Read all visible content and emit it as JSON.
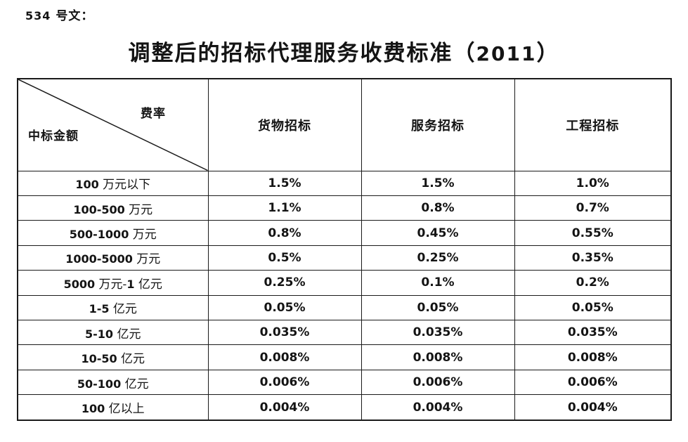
{
  "page": {
    "doc_label": "534 号文：",
    "title": "调整后的招标代理服务收费标准（2011）"
  },
  "colors": {
    "background": "#ffffff",
    "text": "#141414",
    "border": "#1a1a1a"
  },
  "table": {
    "corner": {
      "top_right": "费率",
      "bottom_left": "中标金额"
    },
    "columns": [
      "货物招标",
      "服务招标",
      "工程招标"
    ],
    "rows": [
      {
        "amount": "100 万元以下",
        "goods": "1.5%",
        "services": "1.5%",
        "engineering": "1.0%"
      },
      {
        "amount": "100-500 万元",
        "goods": "1.1%",
        "services": "0.8%",
        "engineering": "0.7%"
      },
      {
        "amount": "500-1000 万元",
        "goods": "0.8%",
        "services": "0.45%",
        "engineering": "0.55%"
      },
      {
        "amount": "1000-5000 万元",
        "goods": "0.5%",
        "services": "0.25%",
        "engineering": "0.35%"
      },
      {
        "amount": "5000 万元-1 亿元",
        "goods": "0.25%",
        "services": "0.1%",
        "engineering": "0.2%"
      },
      {
        "amount": "1-5 亿元",
        "goods": "0.05%",
        "services": "0.05%",
        "engineering": "0.05%"
      },
      {
        "amount": "5-10 亿元",
        "goods": "0.035%",
        "services": "0.035%",
        "engineering": "0.035%"
      },
      {
        "amount": "10-50 亿元",
        "goods": "0.008%",
        "services": "0.008%",
        "engineering": "0.008%"
      },
      {
        "amount": "50-100 亿元",
        "goods": "0.006%",
        "services": "0.006%",
        "engineering": "0.006%"
      },
      {
        "amount": "100 亿以上",
        "goods": "0.004%",
        "services": "0.004%",
        "engineering": "0.004%"
      }
    ]
  }
}
